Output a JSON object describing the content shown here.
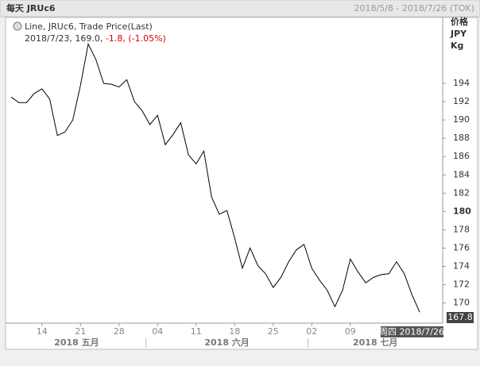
{
  "header": {
    "title": "每天 JRUc6",
    "range": "2018/5/8 - 2018/7/26 (TOK)"
  },
  "legend": {
    "line1": "Line, JRUc6, Trade Price(Last)",
    "line2": "2018/7/23, 169.0, ",
    "change": "-1.8, (-1.05%)"
  },
  "axis_units": [
    "价格",
    "JPY",
    "Kg"
  ],
  "cursor_label": "周四 2018/7/26",
  "chart_data": {
    "type": "line",
    "color": "#000000",
    "categories": [
      "2018/5/8",
      "2018/5/9",
      "2018/5/10",
      "2018/5/11",
      "2018/5/14",
      "2018/5/15",
      "2018/5/16",
      "2018/5/17",
      "2018/5/18",
      "2018/5/21",
      "2018/5/22",
      "2018/5/23",
      "2018/5/24",
      "2018/5/25",
      "2018/5/28",
      "2018/5/29",
      "2018/5/30",
      "2018/5/31",
      "2018/6/1",
      "2018/6/4",
      "2018/6/5",
      "2018/6/6",
      "2018/6/7",
      "2018/6/8",
      "2018/6/11",
      "2018/6/12",
      "2018/6/13",
      "2018/6/14",
      "2018/6/15",
      "2018/6/18",
      "2018/6/19",
      "2018/6/20",
      "2018/6/21",
      "2018/6/22",
      "2018/6/25",
      "2018/6/26",
      "2018/6/27",
      "2018/6/28",
      "2018/6/29",
      "2018/7/2",
      "2018/7/3",
      "2018/7/4",
      "2018/7/5",
      "2018/7/6",
      "2018/7/9",
      "2018/7/10",
      "2018/7/11",
      "2018/7/12",
      "2018/7/13",
      "2018/7/17",
      "2018/7/18",
      "2018/7/19",
      "2018/7/20",
      "2018/7/23"
    ],
    "values": [
      192.5,
      191.9,
      191.9,
      192.9,
      193.4,
      192.3,
      188.3,
      188.7,
      190.0,
      193.8,
      198.3,
      196.6,
      194.0,
      193.9,
      193.6,
      194.4,
      192.0,
      191.0,
      189.5,
      190.5,
      187.3,
      188.4,
      189.7,
      186.2,
      185.2,
      186.6,
      181.6,
      179.7,
      180.1,
      177.1,
      173.8,
      176.0,
      174.1,
      173.2,
      171.7,
      172.8,
      174.5,
      175.8,
      176.4,
      173.8,
      172.5,
      171.4,
      169.6,
      171.4,
      174.8,
      173.4,
      172.2,
      172.8,
      173.1,
      173.2,
      174.5,
      173.2,
      170.9,
      169.0
    ],
    "ylim": [
      167.8,
      201.2
    ],
    "yticks": [
      170,
      172,
      174,
      176,
      178,
      180,
      182,
      184,
      186,
      188,
      190,
      192,
      194
    ],
    "xticks": [
      {
        "value": "2018/5/14",
        "label": "14"
      },
      {
        "value": "2018/5/21",
        "label": "21"
      },
      {
        "value": "2018/5/28",
        "label": "28"
      },
      {
        "value": "2018/6/4",
        "label": "04"
      },
      {
        "value": "2018/6/11",
        "label": "11"
      },
      {
        "value": "2018/6/18",
        "label": "18"
      },
      {
        "value": "2018/6/25",
        "label": "25"
      },
      {
        "value": "2018/7/2",
        "label": "02"
      },
      {
        "value": "2018/7/9",
        "label": "09"
      }
    ],
    "months": [
      {
        "value": "2018/5",
        "label": "2018 五月"
      },
      {
        "value": "2018/6",
        "label": "2018 六月"
      },
      {
        "value": "2018/7",
        "label": "2018 七月"
      }
    ],
    "last_tag": 167.8
  }
}
